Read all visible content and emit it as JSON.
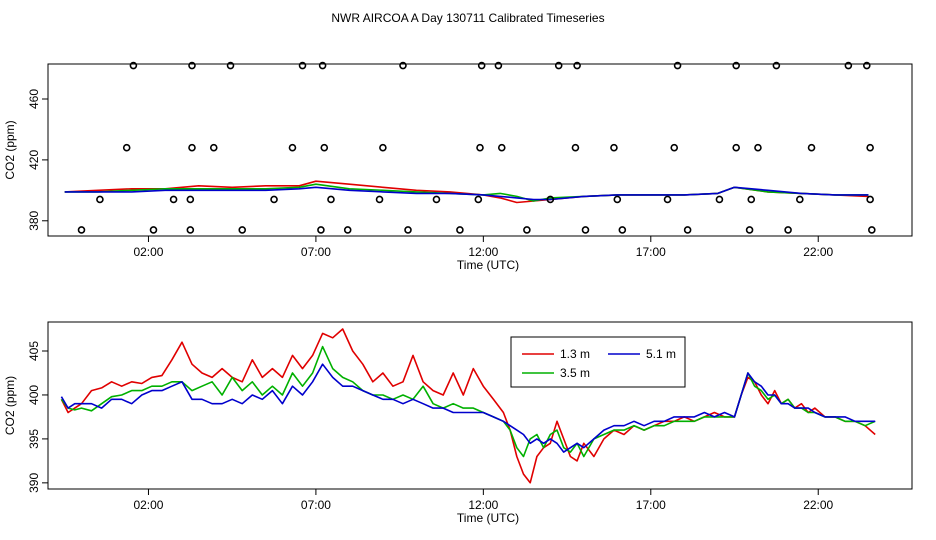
{
  "title": "NWR AIRCOA A  Day 130711  Calibrated Timeseries",
  "chart_data": [
    {
      "type": "line",
      "panel": "top",
      "xlabel": "Time (UTC)",
      "ylabel": "CO2 (ppm)",
      "xlim": [
        -1.0,
        24.8
      ],
      "ylim": [
        370,
        483
      ],
      "x_ticks": [
        {
          "value": 2,
          "label": "02:00"
        },
        {
          "value": 7,
          "label": "07:00"
        },
        {
          "value": 12,
          "label": "12:00"
        },
        {
          "value": 17,
          "label": "17:00"
        },
        {
          "value": 22,
          "label": "22:00"
        }
      ],
      "y_ticks": [
        {
          "value": 380,
          "label": "380"
        },
        {
          "value": 420,
          "label": "420"
        },
        {
          "value": 460,
          "label": "460"
        }
      ],
      "reference_points": [
        {
          "x": 1.55,
          "y": 482
        },
        {
          "x": 3.3,
          "y": 482
        },
        {
          "x": 4.45,
          "y": 482
        },
        {
          "x": 6.6,
          "y": 482
        },
        {
          "x": 7.2,
          "y": 482
        },
        {
          "x": 9.6,
          "y": 482
        },
        {
          "x": 11.95,
          "y": 482
        },
        {
          "x": 12.45,
          "y": 482
        },
        {
          "x": 14.25,
          "y": 482
        },
        {
          "x": 14.8,
          "y": 482
        },
        {
          "x": 17.8,
          "y": 482
        },
        {
          "x": 19.55,
          "y": 482
        },
        {
          "x": 20.75,
          "y": 482
        },
        {
          "x": 22.9,
          "y": 482
        },
        {
          "x": 23.45,
          "y": 482
        },
        {
          "x": 1.35,
          "y": 428
        },
        {
          "x": 3.3,
          "y": 428
        },
        {
          "x": 3.95,
          "y": 428
        },
        {
          "x": 6.3,
          "y": 428
        },
        {
          "x": 7.25,
          "y": 428
        },
        {
          "x": 9.0,
          "y": 428
        },
        {
          "x": 11.9,
          "y": 428
        },
        {
          "x": 12.55,
          "y": 428
        },
        {
          "x": 14.75,
          "y": 428
        },
        {
          "x": 15.9,
          "y": 428
        },
        {
          "x": 17.7,
          "y": 428
        },
        {
          "x": 19.55,
          "y": 428
        },
        {
          "x": 20.2,
          "y": 428
        },
        {
          "x": 21.8,
          "y": 428
        },
        {
          "x": 23.55,
          "y": 428
        },
        {
          "x": 0.55,
          "y": 394
        },
        {
          "x": 2.75,
          "y": 394
        },
        {
          "x": 3.25,
          "y": 394
        },
        {
          "x": 5.75,
          "y": 394
        },
        {
          "x": 7.45,
          "y": 394
        },
        {
          "x": 8.9,
          "y": 394
        },
        {
          "x": 10.6,
          "y": 394
        },
        {
          "x": 11.85,
          "y": 394
        },
        {
          "x": 14.0,
          "y": 394
        },
        {
          "x": 16.0,
          "y": 394
        },
        {
          "x": 17.5,
          "y": 394
        },
        {
          "x": 19.05,
          "y": 394
        },
        {
          "x": 20.0,
          "y": 394
        },
        {
          "x": 21.45,
          "y": 394
        },
        {
          "x": 23.55,
          "y": 394
        },
        {
          "x": 0.0,
          "y": 374
        },
        {
          "x": 2.15,
          "y": 374
        },
        {
          "x": 3.25,
          "y": 374
        },
        {
          "x": 4.8,
          "y": 374
        },
        {
          "x": 7.15,
          "y": 374
        },
        {
          "x": 7.95,
          "y": 374
        },
        {
          "x": 9.75,
          "y": 374
        },
        {
          "x": 11.3,
          "y": 374
        },
        {
          "x": 13.3,
          "y": 374
        },
        {
          "x": 15.05,
          "y": 374
        },
        {
          "x": 16.15,
          "y": 374
        },
        {
          "x": 18.1,
          "y": 374
        },
        {
          "x": 19.95,
          "y": 374
        },
        {
          "x": 21.1,
          "y": 374
        },
        {
          "x": 23.6,
          "y": 374
        }
      ],
      "series": [
        {
          "name": "1.3 m",
          "color": "#e00000",
          "x": [
            -0.5,
            0.5,
            1.5,
            2.5,
            3.5,
            4.5,
            5.5,
            6.5,
            7.0,
            8.0,
            9.0,
            10.0,
            11.0,
            12.0,
            12.5,
            13.0,
            13.5,
            14.0,
            15.0,
            16.0,
            17.0,
            18.0,
            19.0,
            19.5,
            20.5,
            21.5,
            22.5,
            23.5
          ],
          "values": [
            399,
            400,
            401,
            401,
            403,
            402,
            403,
            403,
            406,
            404,
            402,
            400,
            399,
            397,
            395,
            392,
            393,
            394,
            396,
            397,
            397,
            397,
            398,
            402,
            399,
            398,
            397,
            396
          ]
        },
        {
          "name": "3.5 m",
          "color": "#00b000",
          "x": [
            -0.5,
            0.5,
            1.5,
            2.5,
            3.5,
            4.5,
            5.5,
            6.5,
            7.0,
            8.0,
            9.0,
            10.0,
            11.0,
            12.0,
            12.5,
            13.0,
            13.5,
            14.0,
            15.0,
            16.0,
            17.0,
            18.0,
            19.0,
            19.5,
            20.5,
            21.5,
            22.5,
            23.5
          ],
          "values": [
            399,
            399,
            400,
            401,
            401,
            401,
            401,
            402,
            404,
            401,
            400,
            399,
            398,
            397,
            398,
            396,
            393,
            395,
            396,
            397,
            397,
            397,
            398,
            402,
            399,
            398,
            397,
            397
          ]
        },
        {
          "name": "5.1 m",
          "color": "#0000cc",
          "x": [
            -0.5,
            0.5,
            1.5,
            2.5,
            3.5,
            4.5,
            5.5,
            6.5,
            7.0,
            8.0,
            9.0,
            10.0,
            11.0,
            12.0,
            12.5,
            13.0,
            13.5,
            14.0,
            15.0,
            16.0,
            17.0,
            18.0,
            19.0,
            19.5,
            20.5,
            21.5,
            22.5,
            23.5
          ],
          "values": [
            399,
            399,
            399,
            400,
            400,
            400,
            400,
            401,
            402,
            400,
            399,
            398,
            398,
            397,
            396,
            395,
            394,
            394,
            396,
            397,
            397,
            397,
            398,
            402,
            400,
            398,
            397,
            397
          ]
        }
      ]
    },
    {
      "type": "line",
      "panel": "bottom",
      "xlabel": "Time (UTC)",
      "ylabel": "CO2 (ppm)",
      "xlim": [
        -1.0,
        24.8
      ],
      "ylim": [
        389.3,
        408.3
      ],
      "x_ticks": [
        {
          "value": 2,
          "label": "02:00"
        },
        {
          "value": 7,
          "label": "07:00"
        },
        {
          "value": 12,
          "label": "12:00"
        },
        {
          "value": 17,
          "label": "17:00"
        },
        {
          "value": 22,
          "label": "22:00"
        }
      ],
      "y_ticks": [
        {
          "value": 390,
          "label": "390"
        },
        {
          "value": 395,
          "label": "395"
        },
        {
          "value": 400,
          "label": "400"
        },
        {
          "value": 405,
          "label": "405"
        }
      ],
      "legend": {
        "placement": "top-center"
      },
      "series": [
        {
          "name": "1.3 m",
          "color": "#e00000",
          "x": [
            -0.6,
            -0.4,
            -0.2,
            0.0,
            0.3,
            0.6,
            0.9,
            1.2,
            1.5,
            1.8,
            2.1,
            2.4,
            2.7,
            3.0,
            3.3,
            3.6,
            3.9,
            4.2,
            4.5,
            4.8,
            5.1,
            5.4,
            5.7,
            6.0,
            6.3,
            6.6,
            6.9,
            7.2,
            7.5,
            7.8,
            8.1,
            8.4,
            8.7,
            9.0,
            9.3,
            9.6,
            9.9,
            10.2,
            10.5,
            10.8,
            11.1,
            11.4,
            11.7,
            12.0,
            12.3,
            12.6,
            12.8,
            13.0,
            13.2,
            13.4,
            13.6,
            13.8,
            14.0,
            14.2,
            14.4,
            14.6,
            14.8,
            15.0,
            15.3,
            15.6,
            15.9,
            16.2,
            16.5,
            16.8,
            17.1,
            17.4,
            17.7,
            18.0,
            18.3,
            18.6,
            18.9,
            19.2,
            19.5,
            19.7,
            19.9,
            20.1,
            20.3,
            20.5,
            20.7,
            20.9,
            21.1,
            21.3,
            21.5,
            21.7,
            21.9,
            22.2,
            22.5,
            22.8,
            23.1,
            23.4,
            23.7
          ],
          "values": [
            399.5,
            398.0,
            398.5,
            399.0,
            400.5,
            400.8,
            401.5,
            401.0,
            401.5,
            401.3,
            402.0,
            402.2,
            404.0,
            406.0,
            403.5,
            402.5,
            402.0,
            403.0,
            402.0,
            401.5,
            404.0,
            402.0,
            403.0,
            402.0,
            404.5,
            403.0,
            404.5,
            407.0,
            406.5,
            407.5,
            405.0,
            403.5,
            401.5,
            402.5,
            401.0,
            401.5,
            404.5,
            401.5,
            400.5,
            400.0,
            402.5,
            400.0,
            403.0,
            401.0,
            399.5,
            398.0,
            396.0,
            393.0,
            391.0,
            390.0,
            393.0,
            394.0,
            394.5,
            397.0,
            395.0,
            393.0,
            392.5,
            394.5,
            393.0,
            395.0,
            396.0,
            395.5,
            396.5,
            396.0,
            396.5,
            397.0,
            397.0,
            397.5,
            397.0,
            397.5,
            398.0,
            397.5,
            397.5,
            400.0,
            402.0,
            401.5,
            400.0,
            399.0,
            400.5,
            399.0,
            399.5,
            398.5,
            399.0,
            398.0,
            398.5,
            397.5,
            397.5,
            397.0,
            397.0,
            396.5,
            395.5
          ]
        },
        {
          "name": "3.5 m",
          "color": "#00b000",
          "x": [
            -0.6,
            -0.4,
            -0.2,
            0.0,
            0.3,
            0.6,
            0.9,
            1.2,
            1.5,
            1.8,
            2.1,
            2.4,
            2.7,
            3.0,
            3.3,
            3.6,
            3.9,
            4.2,
            4.5,
            4.8,
            5.1,
            5.4,
            5.7,
            6.0,
            6.3,
            6.6,
            6.9,
            7.2,
            7.5,
            7.8,
            8.1,
            8.4,
            8.7,
            9.0,
            9.3,
            9.6,
            9.9,
            10.2,
            10.5,
            10.8,
            11.1,
            11.4,
            11.7,
            12.0,
            12.3,
            12.6,
            12.8,
            13.0,
            13.2,
            13.4,
            13.6,
            13.8,
            14.0,
            14.2,
            14.4,
            14.6,
            14.8,
            15.0,
            15.3,
            15.6,
            15.9,
            16.2,
            16.5,
            16.8,
            17.1,
            17.4,
            17.7,
            18.0,
            18.3,
            18.6,
            18.9,
            19.2,
            19.5,
            19.7,
            19.9,
            20.1,
            20.3,
            20.5,
            20.7,
            20.9,
            21.1,
            21.3,
            21.5,
            21.7,
            21.9,
            22.2,
            22.5,
            22.8,
            23.1,
            23.4,
            23.7
          ],
          "values": [
            399.5,
            398.5,
            398.3,
            398.5,
            398.2,
            399.0,
            399.8,
            400.0,
            400.5,
            400.5,
            401.0,
            401.0,
            401.5,
            401.5,
            400.5,
            401.0,
            401.5,
            400.0,
            402.0,
            400.5,
            401.5,
            400.0,
            401.0,
            400.0,
            402.5,
            401.0,
            402.5,
            405.5,
            403.0,
            402.0,
            401.5,
            400.5,
            400.0,
            400.0,
            399.5,
            400.0,
            399.5,
            401.0,
            399.0,
            398.5,
            399.0,
            398.5,
            398.5,
            398.0,
            397.5,
            397.0,
            396.0,
            394.0,
            393.0,
            395.0,
            395.5,
            394.0,
            395.5,
            396.0,
            394.0,
            393.5,
            394.5,
            393.0,
            395.0,
            395.5,
            396.0,
            396.0,
            396.5,
            396.0,
            396.5,
            396.5,
            397.0,
            397.0,
            397.0,
            397.5,
            397.5,
            397.5,
            397.5,
            400.0,
            402.5,
            401.0,
            400.5,
            399.5,
            400.0,
            399.0,
            399.5,
            398.5,
            398.5,
            398.0,
            398.0,
            397.5,
            397.5,
            397.0,
            397.0,
            396.5,
            397.0
          ]
        },
        {
          "name": "5.1 m",
          "color": "#0000cc",
          "x": [
            -0.6,
            -0.4,
            -0.2,
            0.0,
            0.3,
            0.6,
            0.9,
            1.2,
            1.5,
            1.8,
            2.1,
            2.4,
            2.7,
            3.0,
            3.3,
            3.6,
            3.9,
            4.2,
            4.5,
            4.8,
            5.1,
            5.4,
            5.7,
            6.0,
            6.3,
            6.6,
            6.9,
            7.2,
            7.5,
            7.8,
            8.1,
            8.4,
            8.7,
            9.0,
            9.3,
            9.6,
            9.9,
            10.2,
            10.5,
            10.8,
            11.1,
            11.4,
            11.7,
            12.0,
            12.3,
            12.6,
            12.8,
            13.0,
            13.2,
            13.4,
            13.6,
            13.8,
            14.0,
            14.2,
            14.4,
            14.6,
            14.8,
            15.0,
            15.3,
            15.6,
            15.9,
            16.2,
            16.5,
            16.8,
            17.1,
            17.4,
            17.7,
            18.0,
            18.3,
            18.6,
            18.9,
            19.2,
            19.5,
            19.7,
            19.9,
            20.1,
            20.3,
            20.5,
            20.7,
            20.9,
            21.1,
            21.3,
            21.5,
            21.7,
            21.9,
            22.2,
            22.5,
            22.8,
            23.1,
            23.4,
            23.7
          ],
          "values": [
            399.8,
            398.5,
            399.0,
            399.0,
            399.0,
            398.5,
            399.5,
            399.5,
            399.0,
            400.0,
            400.5,
            400.5,
            401.0,
            401.5,
            399.5,
            399.5,
            399.0,
            399.0,
            399.5,
            399.0,
            400.0,
            399.5,
            400.5,
            399.0,
            401.0,
            400.0,
            401.5,
            403.5,
            402.0,
            401.0,
            401.0,
            400.5,
            400.0,
            399.5,
            399.5,
            399.0,
            399.5,
            399.0,
            398.5,
            398.5,
            398.0,
            398.0,
            398.0,
            398.0,
            397.5,
            397.0,
            396.5,
            396.0,
            395.5,
            394.5,
            395.0,
            394.5,
            395.0,
            394.5,
            393.5,
            394.0,
            394.5,
            394.0,
            395.0,
            396.0,
            396.5,
            396.5,
            397.0,
            396.5,
            397.0,
            397.0,
            397.5,
            397.5,
            397.5,
            398.0,
            397.5,
            398.0,
            397.5,
            400.0,
            402.5,
            401.5,
            401.0,
            400.0,
            400.0,
            399.0,
            399.0,
            398.5,
            398.5,
            398.5,
            398.0,
            397.5,
            397.5,
            397.5,
            397.0,
            397.0,
            397.0
          ]
        }
      ]
    }
  ]
}
